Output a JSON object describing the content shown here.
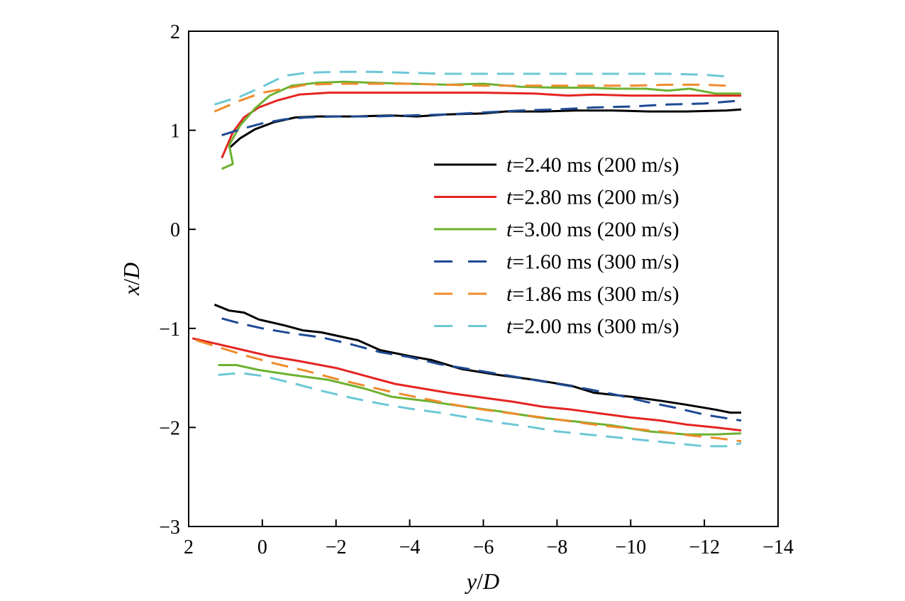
{
  "chart_data": {
    "type": "line",
    "xlabel_parts": [
      "y",
      "/",
      "D"
    ],
    "ylabel_parts": [
      "x",
      "/",
      "D"
    ],
    "xlim": [
      2,
      -14
    ],
    "ylim": [
      -3,
      2
    ],
    "x_ticks": [
      "2",
      "0",
      "−2",
      "−4",
      "−6",
      "−8",
      "−10",
      "−12",
      "−14"
    ],
    "x_tick_values": [
      2,
      0,
      -2,
      -4,
      -6,
      -8,
      -10,
      -12,
      -14
    ],
    "y_ticks": [
      "2",
      "1",
      "0",
      "−1",
      "−2",
      "−3"
    ],
    "y_tick_values": [
      2,
      1,
      0,
      -1,
      -2,
      -3
    ],
    "grid": false,
    "legend_position": "right",
    "series": [
      {
        "name": "t=2.40 ms (200 m/s)",
        "t_var": "t",
        "rest": "=2.40 ms (200 m/s)",
        "color": "#000000",
        "dash": "solid",
        "upper": [
          [
            0.9,
            0.82
          ],
          [
            0.6,
            0.92
          ],
          [
            0.2,
            1.01
          ],
          [
            -0.3,
            1.08
          ],
          [
            -0.9,
            1.13
          ],
          [
            -1.5,
            1.14
          ],
          [
            -2.5,
            1.14
          ],
          [
            -3.5,
            1.15
          ],
          [
            -4.2,
            1.14
          ],
          [
            -5.0,
            1.16
          ],
          [
            -6.0,
            1.17
          ],
          [
            -6.6,
            1.19
          ],
          [
            -7.6,
            1.19
          ],
          [
            -8.5,
            1.2
          ],
          [
            -9.5,
            1.2
          ],
          [
            -10.5,
            1.19
          ],
          [
            -11.5,
            1.19
          ],
          [
            -12.6,
            1.2
          ],
          [
            -13.0,
            1.21
          ]
        ],
        "lower": [
          [
            1.3,
            -0.76
          ],
          [
            0.9,
            -0.82
          ],
          [
            0.5,
            -0.84
          ],
          [
            0.1,
            -0.91
          ],
          [
            -0.6,
            -0.97
          ],
          [
            -1.1,
            -1.02
          ],
          [
            -1.6,
            -1.04
          ],
          [
            -2.6,
            -1.12
          ],
          [
            -3.2,
            -1.22
          ],
          [
            -4.0,
            -1.28
          ],
          [
            -4.6,
            -1.32
          ],
          [
            -5.4,
            -1.41
          ],
          [
            -6.4,
            -1.47
          ],
          [
            -7.4,
            -1.52
          ],
          [
            -8.4,
            -1.58
          ],
          [
            -9.0,
            -1.65
          ],
          [
            -10.0,
            -1.69
          ],
          [
            -10.8,
            -1.73
          ],
          [
            -11.5,
            -1.77
          ],
          [
            -12.3,
            -1.82
          ],
          [
            -12.7,
            -1.85
          ],
          [
            -13.0,
            -1.85
          ]
        ]
      },
      {
        "name": "t=2.80 ms (200 m/s)",
        "t_var": "t",
        "rest": "=2.80 ms (200 m/s)",
        "color": "#e52421",
        "dash": "solid",
        "upper": [
          [
            1.1,
            0.72
          ],
          [
            0.8,
            0.98
          ],
          [
            0.5,
            1.13
          ],
          [
            0.1,
            1.23
          ],
          [
            -0.4,
            1.3
          ],
          [
            -1.0,
            1.36
          ],
          [
            -1.8,
            1.38
          ],
          [
            -2.8,
            1.38
          ],
          [
            -4.0,
            1.38
          ],
          [
            -5.0,
            1.38
          ],
          [
            -6.0,
            1.38
          ],
          [
            -7.4,
            1.37
          ],
          [
            -8.3,
            1.35
          ],
          [
            -9.0,
            1.36
          ],
          [
            -10.0,
            1.35
          ],
          [
            -11.0,
            1.35
          ],
          [
            -12.0,
            1.35
          ],
          [
            -13.0,
            1.35
          ]
        ],
        "lower": [
          [
            1.9,
            -1.1
          ],
          [
            1.2,
            -1.16
          ],
          [
            0.5,
            -1.22
          ],
          [
            -0.2,
            -1.28
          ],
          [
            -1.0,
            -1.33
          ],
          [
            -2.0,
            -1.4
          ],
          [
            -2.8,
            -1.48
          ],
          [
            -3.6,
            -1.56
          ],
          [
            -4.4,
            -1.61
          ],
          [
            -5.2,
            -1.66
          ],
          [
            -6.0,
            -1.7
          ],
          [
            -6.8,
            -1.74
          ],
          [
            -7.6,
            -1.79
          ],
          [
            -8.4,
            -1.82
          ],
          [
            -9.2,
            -1.86
          ],
          [
            -10.0,
            -1.9
          ],
          [
            -10.8,
            -1.93
          ],
          [
            -11.5,
            -1.97
          ],
          [
            -12.3,
            -2.0
          ],
          [
            -13.0,
            -2.03
          ]
        ]
      },
      {
        "name": "t=3.00 ms (200 m/s)",
        "t_var": "t",
        "rest": "=3.00 ms (200 m/s)",
        "color": "#6cb130",
        "dash": "solid",
        "upper": [
          [
            1.1,
            0.61
          ],
          [
            0.8,
            0.66
          ],
          [
            0.9,
            0.85
          ],
          [
            0.6,
            1.05
          ],
          [
            0.2,
            1.22
          ],
          [
            -0.2,
            1.35
          ],
          [
            -0.8,
            1.45
          ],
          [
            -1.5,
            1.48
          ],
          [
            -2.2,
            1.49
          ],
          [
            -3.0,
            1.48
          ],
          [
            -4.0,
            1.47
          ],
          [
            -5.0,
            1.46
          ],
          [
            -6.0,
            1.47
          ],
          [
            -7.0,
            1.44
          ],
          [
            -8.0,
            1.43
          ],
          [
            -8.8,
            1.43
          ],
          [
            -9.6,
            1.42
          ],
          [
            -10.4,
            1.42
          ],
          [
            -11.0,
            1.4
          ],
          [
            -11.6,
            1.42
          ],
          [
            -12.3,
            1.37
          ],
          [
            -13.0,
            1.37
          ]
        ],
        "lower": [
          [
            1.2,
            -1.37
          ],
          [
            0.7,
            -1.37
          ],
          [
            0.1,
            -1.42
          ],
          [
            -0.8,
            -1.47
          ],
          [
            -1.8,
            -1.52
          ],
          [
            -2.8,
            -1.61
          ],
          [
            -3.5,
            -1.69
          ],
          [
            -4.4,
            -1.73
          ],
          [
            -5.5,
            -1.79
          ],
          [
            -6.5,
            -1.84
          ],
          [
            -7.5,
            -1.9
          ],
          [
            -8.5,
            -1.94
          ],
          [
            -9.5,
            -1.98
          ],
          [
            -10.5,
            -2.04
          ],
          [
            -11.5,
            -2.07
          ],
          [
            -12.3,
            -2.07
          ],
          [
            -13.0,
            -2.06
          ]
        ]
      },
      {
        "name": "t=1.60 ms (300 m/s)",
        "t_var": "t",
        "rest": "=1.60 ms (300 m/s)",
        "color": "#1d4a94",
        "dash": "dashed",
        "upper": [
          [
            1.1,
            0.95
          ],
          [
            0.5,
            1.02
          ],
          [
            0.0,
            1.07
          ],
          [
            -0.6,
            1.11
          ],
          [
            -1.2,
            1.13
          ],
          [
            -2.0,
            1.14
          ],
          [
            -3.0,
            1.14
          ],
          [
            -4.0,
            1.15
          ],
          [
            -5.0,
            1.16
          ],
          [
            -6.0,
            1.18
          ],
          [
            -7.0,
            1.2
          ],
          [
            -8.0,
            1.21
          ],
          [
            -9.0,
            1.23
          ],
          [
            -10.0,
            1.24
          ],
          [
            -11.0,
            1.26
          ],
          [
            -12.0,
            1.27
          ],
          [
            -13.0,
            1.3
          ]
        ],
        "lower": [
          [
            1.1,
            -0.9
          ],
          [
            0.6,
            -0.95
          ],
          [
            0.0,
            -1.0
          ],
          [
            -0.8,
            -1.05
          ],
          [
            -1.6,
            -1.09
          ],
          [
            -2.4,
            -1.16
          ],
          [
            -3.2,
            -1.24
          ],
          [
            -4.0,
            -1.29
          ],
          [
            -4.8,
            -1.36
          ],
          [
            -5.6,
            -1.41
          ],
          [
            -6.4,
            -1.46
          ],
          [
            -7.2,
            -1.51
          ],
          [
            -8.0,
            -1.56
          ],
          [
            -8.8,
            -1.61
          ],
          [
            -9.6,
            -1.67
          ],
          [
            -10.4,
            -1.74
          ],
          [
            -11.2,
            -1.8
          ],
          [
            -12.0,
            -1.87
          ],
          [
            -12.8,
            -1.92
          ],
          [
            -13.0,
            -1.93
          ]
        ]
      },
      {
        "name": "t=1.86 ms (300 m/s)",
        "t_var": "t",
        "rest": "=1.86 ms (300 m/s)",
        "color": "#ef8b2c",
        "dash": "dashed",
        "upper": [
          [
            1.3,
            1.19
          ],
          [
            0.6,
            1.3
          ],
          [
            0.0,
            1.38
          ],
          [
            -0.6,
            1.42
          ],
          [
            -1.2,
            1.46
          ],
          [
            -2.0,
            1.47
          ],
          [
            -3.0,
            1.47
          ],
          [
            -4.0,
            1.47
          ],
          [
            -5.0,
            1.46
          ],
          [
            -6.0,
            1.45
          ],
          [
            -7.0,
            1.45
          ],
          [
            -8.0,
            1.45
          ],
          [
            -9.0,
            1.45
          ],
          [
            -10.0,
            1.45
          ],
          [
            -11.0,
            1.46
          ],
          [
            -12.0,
            1.46
          ],
          [
            -12.6,
            1.45
          ]
        ],
        "lower": [
          [
            1.8,
            -1.12
          ],
          [
            1.1,
            -1.2
          ],
          [
            0.4,
            -1.28
          ],
          [
            -0.4,
            -1.36
          ],
          [
            -1.2,
            -1.43
          ],
          [
            -2.0,
            -1.51
          ],
          [
            -2.8,
            -1.58
          ],
          [
            -3.6,
            -1.65
          ],
          [
            -4.4,
            -1.71
          ],
          [
            -5.2,
            -1.77
          ],
          [
            -6.0,
            -1.82
          ],
          [
            -6.8,
            -1.86
          ],
          [
            -7.6,
            -1.9
          ],
          [
            -8.4,
            -1.94
          ],
          [
            -9.2,
            -1.98
          ],
          [
            -10.0,
            -2.01
          ],
          [
            -10.8,
            -2.04
          ],
          [
            -11.6,
            -2.08
          ],
          [
            -12.4,
            -2.11
          ],
          [
            -13.0,
            -2.14
          ]
        ]
      },
      {
        "name": "t=2.00 ms (300 m/s)",
        "t_var": "t",
        "rest": "=2.00 ms (300 m/s)",
        "color": "#6cc8d6",
        "dash": "dashed",
        "upper": [
          [
            1.3,
            1.26
          ],
          [
            0.6,
            1.34
          ],
          [
            0.0,
            1.44
          ],
          [
            -0.6,
            1.55
          ],
          [
            -1.2,
            1.58
          ],
          [
            -2.0,
            1.59
          ],
          [
            -3.0,
            1.59
          ],
          [
            -4.0,
            1.58
          ],
          [
            -5.0,
            1.57
          ],
          [
            -6.0,
            1.57
          ],
          [
            -7.0,
            1.57
          ],
          [
            -8.0,
            1.57
          ],
          [
            -9.0,
            1.57
          ],
          [
            -10.0,
            1.57
          ],
          [
            -11.0,
            1.57
          ],
          [
            -12.0,
            1.56
          ],
          [
            -12.7,
            1.54
          ]
        ],
        "lower": [
          [
            1.2,
            -1.47
          ],
          [
            0.6,
            -1.45
          ],
          [
            0.0,
            -1.48
          ],
          [
            -0.8,
            -1.55
          ],
          [
            -1.6,
            -1.63
          ],
          [
            -2.4,
            -1.7
          ],
          [
            -3.2,
            -1.76
          ],
          [
            -4.0,
            -1.81
          ],
          [
            -4.8,
            -1.85
          ],
          [
            -5.6,
            -1.9
          ],
          [
            -6.4,
            -1.95
          ],
          [
            -7.2,
            -1.99
          ],
          [
            -8.0,
            -2.04
          ],
          [
            -8.8,
            -2.07
          ],
          [
            -9.6,
            -2.1
          ],
          [
            -10.4,
            -2.13
          ],
          [
            -11.2,
            -2.16
          ],
          [
            -12.0,
            -2.19
          ],
          [
            -12.6,
            -2.19
          ],
          [
            -13.0,
            -2.16
          ]
        ]
      }
    ]
  }
}
